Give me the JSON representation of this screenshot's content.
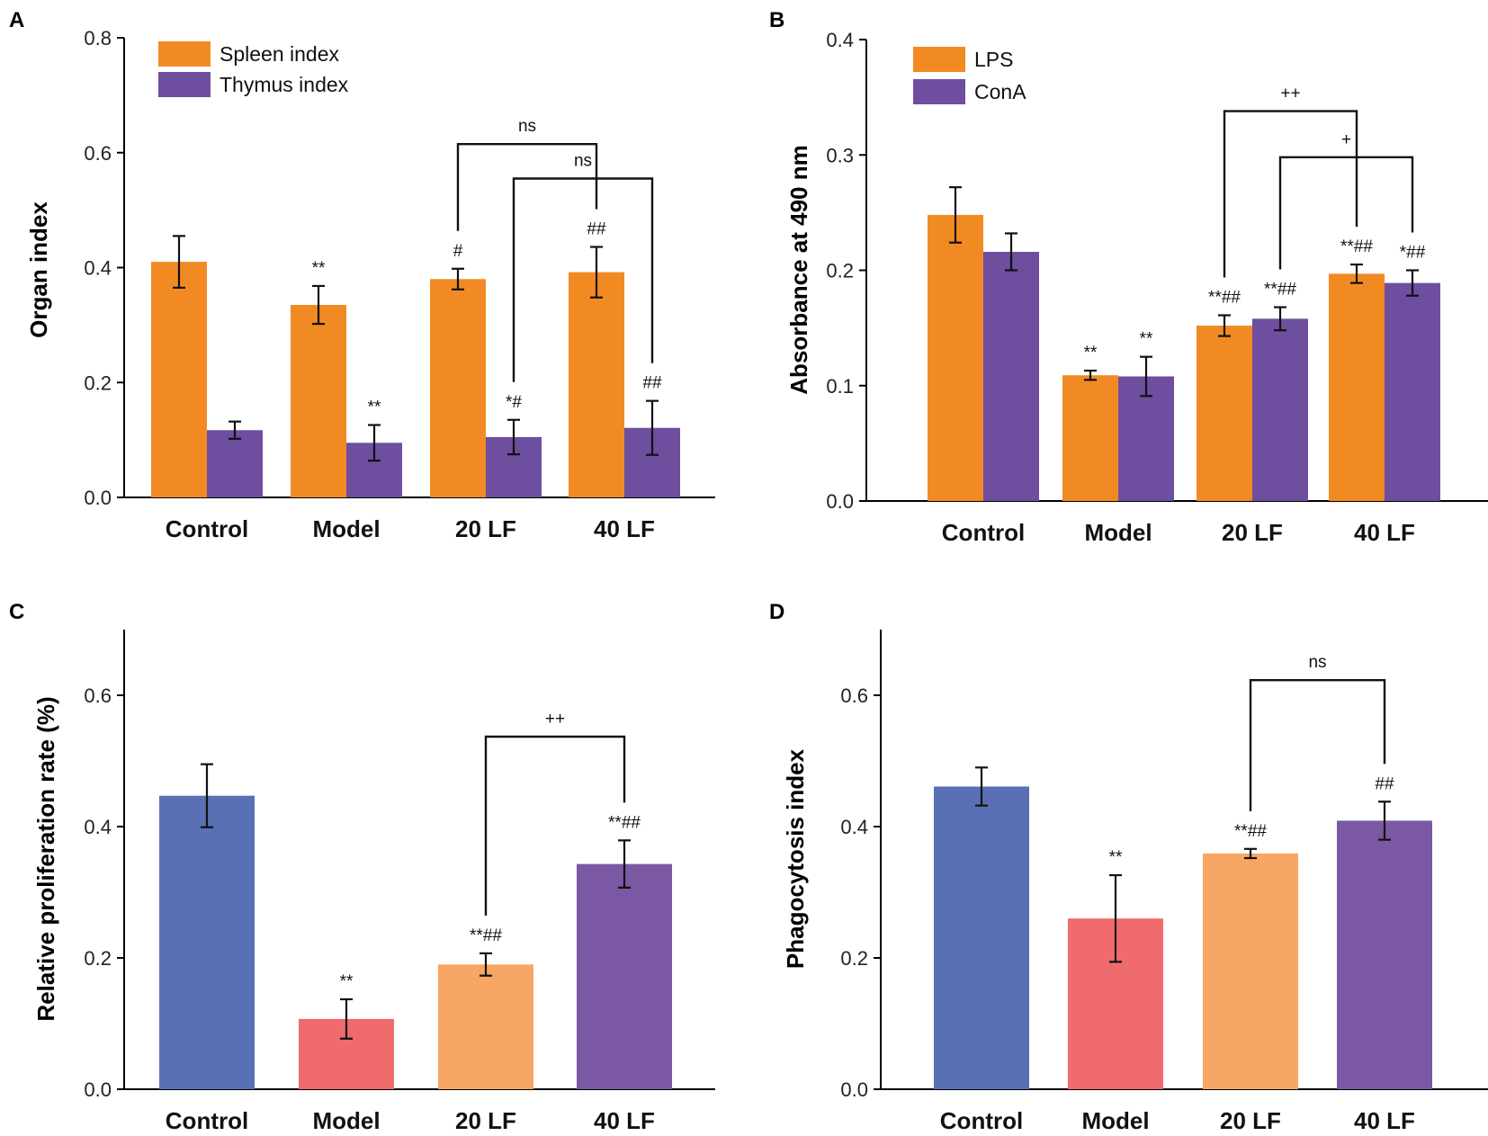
{
  "colors": {
    "orange": "#F28A24",
    "purple": "#6E4E9E",
    "blue": "#5A70B5",
    "red": "#F06B6E",
    "lightOrange": "#F7A663",
    "violet": "#7B58A4",
    "axis": "#000000"
  },
  "chart_data": [
    {
      "panel": "A",
      "type": "bar",
      "ylabel": "Organ index",
      "xlabel": "",
      "ylim": [
        0,
        0.8
      ],
      "yticks": [
        0.0,
        0.2,
        0.4,
        0.6,
        0.8
      ],
      "ytick_labels": [
        "0.0",
        "0.2",
        "0.4",
        "0.6",
        "0.8"
      ],
      "categories": [
        "Control",
        "Model",
        "20 LF",
        "40 LF"
      ],
      "legend": "top-left",
      "series": [
        {
          "name": "Spleen index",
          "color": "#F28A24",
          "values": [
            0.41,
            0.335,
            0.38,
            0.392
          ],
          "errors": [
            0.045,
            0.033,
            0.018,
            0.044
          ],
          "annotations": [
            "",
            "**",
            "#",
            "##"
          ]
        },
        {
          "name": "Thymus index",
          "color": "#6E4E9E",
          "values": [
            0.117,
            0.095,
            0.105,
            0.121
          ],
          "errors": [
            0.015,
            0.031,
            0.03,
            0.047
          ],
          "annotations": [
            "",
            "**",
            "*#",
            "##"
          ]
        }
      ],
      "brackets": [
        {
          "from": [
            2,
            0
          ],
          "to": [
            3,
            0
          ],
          "label": "ns",
          "y": 0.615
        },
        {
          "from": [
            2,
            1
          ],
          "to": [
            3,
            1
          ],
          "label": "ns",
          "y": 0.555
        }
      ]
    },
    {
      "panel": "B",
      "type": "bar",
      "ylabel": "Absorbance at 490 nm",
      "xlabel": "",
      "ylim": [
        0,
        0.4
      ],
      "yticks": [
        0.0,
        0.1,
        0.2,
        0.3,
        0.4
      ],
      "ytick_labels": [
        "0.0",
        "0.1",
        "0.2",
        "0.3",
        "0.4"
      ],
      "categories": [
        "Control",
        "Model",
        "20 LF",
        "40 LF"
      ],
      "legend": "top-left",
      "series": [
        {
          "name": "LPS",
          "color": "#F28A24",
          "values": [
            0.248,
            0.109,
            0.152,
            0.197
          ],
          "errors": [
            0.024,
            0.004,
            0.009,
            0.008
          ],
          "annotations": [
            "",
            "**",
            "**##",
            "**##"
          ]
        },
        {
          "name": "ConA",
          "color": "#6E4E9E",
          "values": [
            0.216,
            0.108,
            0.158,
            0.189
          ],
          "errors": [
            0.016,
            0.017,
            0.01,
            0.011
          ],
          "annotations": [
            "",
            "**",
            "**##",
            "*##"
          ]
        }
      ],
      "brackets": [
        {
          "from": [
            2,
            0
          ],
          "to": [
            3,
            0
          ],
          "label": "++",
          "y": 0.338
        },
        {
          "from": [
            2,
            1
          ],
          "to": [
            3,
            1
          ],
          "label": "+",
          "y": 0.298
        }
      ]
    },
    {
      "panel": "C",
      "type": "bar",
      "ylabel": "Relative proliferation rate (%)",
      "xlabel": "",
      "ylim": [
        0,
        0.7
      ],
      "yticks": [
        0.0,
        0.2,
        0.4,
        0.6
      ],
      "ytick_labels": [
        "0.0",
        "0.2",
        "0.4",
        "0.6"
      ],
      "categories": [
        "Control",
        "Model",
        "20 LF",
        "40 LF"
      ],
      "legend": "none",
      "series": [
        {
          "name": "Relative proliferation rate",
          "colors": [
            "#5A70B5",
            "#F06B6E",
            "#F7A663",
            "#7B58A4"
          ],
          "values": [
            0.447,
            0.107,
            0.19,
            0.343
          ],
          "errors": [
            0.048,
            0.03,
            0.017,
            0.036
          ],
          "annotations": [
            "",
            "**",
            "**##",
            "**##"
          ]
        }
      ],
      "brackets": [
        {
          "from": [
            2,
            0
          ],
          "to": [
            3,
            0
          ],
          "label": "++",
          "y": 0.537
        }
      ]
    },
    {
      "panel": "D",
      "type": "bar",
      "ylabel": "Phagocytosis index",
      "xlabel": "",
      "ylim": [
        0,
        0.7
      ],
      "yticks": [
        0.0,
        0.2,
        0.4,
        0.6
      ],
      "ytick_labels": [
        "0.0",
        "0.2",
        "0.4",
        "0.6"
      ],
      "categories": [
        "Control",
        "Model",
        "20 LF",
        "40 LF"
      ],
      "legend": "none",
      "series": [
        {
          "name": "Phagocytosis index",
          "colors": [
            "#5A70B5",
            "#F06B6E",
            "#F7A663",
            "#7B58A4"
          ],
          "values": [
            0.461,
            0.26,
            0.359,
            0.409
          ],
          "errors": [
            0.029,
            0.066,
            0.007,
            0.029
          ],
          "annotations": [
            "",
            "**",
            "**##",
            "##"
          ]
        }
      ],
      "brackets": [
        {
          "from": [
            2,
            0
          ],
          "to": [
            3,
            0
          ],
          "label": "ns",
          "y": 0.623
        }
      ]
    }
  ]
}
